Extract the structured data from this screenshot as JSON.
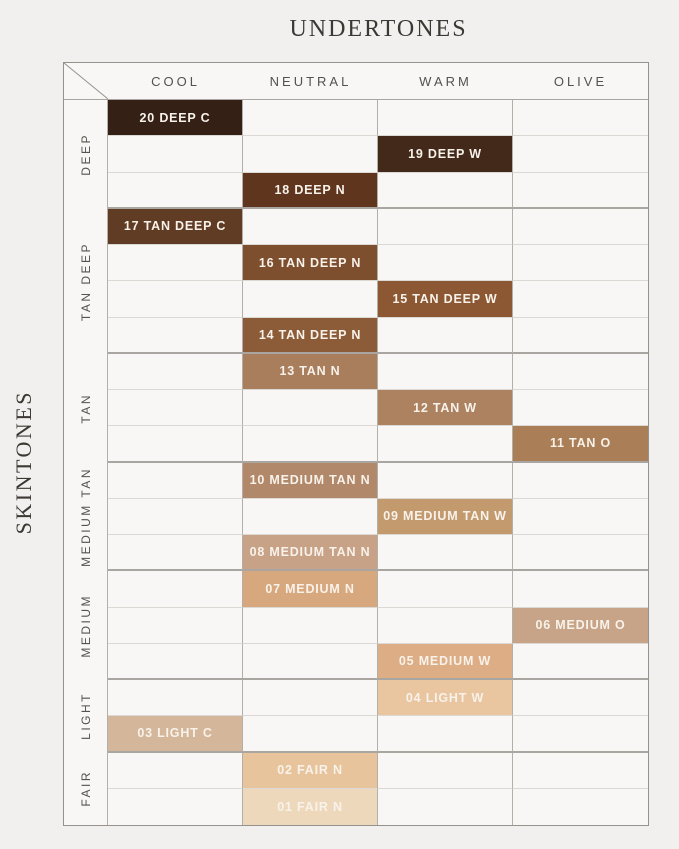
{
  "title": "UNDERTONES",
  "y_axis_title": "SKINTONES",
  "columns": [
    {
      "id": "cool",
      "label": "COOL"
    },
    {
      "id": "neutral",
      "label": "NEUTRAL"
    },
    {
      "id": "warm",
      "label": "WARM"
    },
    {
      "id": "olive",
      "label": "OLIVE"
    }
  ],
  "groups": [
    {
      "label": "DEEP",
      "rows": 3
    },
    {
      "label": "TAN DEEP",
      "rows": 4
    },
    {
      "label": "TAN",
      "rows": 3
    },
    {
      "label": "MEDIUM TAN",
      "rows": 3
    },
    {
      "label": "MEDIUM",
      "rows": 3
    },
    {
      "label": "LIGHT",
      "rows": 2
    },
    {
      "label": "FAIR",
      "rows": 2
    }
  ],
  "shades": [
    {
      "label": "20 DEEP C",
      "group": "DEEP",
      "column": "cool",
      "color": "#342015"
    },
    {
      "label": "19 DEEP W",
      "group": "DEEP",
      "column": "warm",
      "color": "#42291a"
    },
    {
      "label": "18 DEEP N",
      "group": "DEEP",
      "column": "neutral",
      "color": "#5f351e"
    },
    {
      "label": "17 TAN DEEP C",
      "group": "TAN DEEP",
      "column": "cool",
      "color": "#613c25"
    },
    {
      "label": "16 TAN DEEP N",
      "group": "TAN DEEP",
      "column": "neutral",
      "color": "#7d4f2e"
    },
    {
      "label": "15 TAN DEEP W",
      "group": "TAN DEEP",
      "column": "warm",
      "color": "#8b5833"
    },
    {
      "label": "14 TAN DEEP N",
      "group": "TAN DEEP",
      "column": "neutral",
      "color": "#8c5c38"
    },
    {
      "label": "13 TAN N",
      "group": "TAN",
      "column": "neutral",
      "color": "#a87e5d"
    },
    {
      "label": "12 TAN W",
      "group": "TAN",
      "column": "warm",
      "color": "#ac8260"
    },
    {
      "label": "11 TAN O",
      "group": "TAN",
      "column": "olive",
      "color": "#aa7f58"
    },
    {
      "label": "10 MEDIUM TAN N",
      "group": "MEDIUM TAN",
      "column": "neutral",
      "color": "#b1896a"
    },
    {
      "label": "09 MEDIUM TAN W",
      "group": "MEDIUM TAN",
      "column": "warm",
      "color": "#c39a6e"
    },
    {
      "label": "08 MEDIUM TAN N",
      "group": "MEDIUM TAN",
      "column": "neutral",
      "color": "#c7a286"
    },
    {
      "label": "07 MEDIUM N",
      "group": "MEDIUM",
      "column": "neutral",
      "color": "#d7a77e"
    },
    {
      "label": "06 MEDIUM O",
      "group": "MEDIUM",
      "column": "olive",
      "color": "#c7a487"
    },
    {
      "label": "05 MEDIUM W",
      "group": "MEDIUM",
      "column": "warm",
      "color": "#ddad85"
    },
    {
      "label": "04 LIGHT W",
      "group": "LIGHT",
      "column": "warm",
      "color": "#e9c5a0"
    },
    {
      "label": "03 LIGHT C",
      "group": "LIGHT",
      "column": "cool",
      "color": "#d4b69a"
    },
    {
      "label": "02 FAIR N",
      "group": "FAIR",
      "column": "neutral",
      "color": "#e8c49c"
    },
    {
      "label": "01 FAIR N",
      "group": "FAIR",
      "column": "neutral",
      "color": "#eed8bb"
    }
  ],
  "colors": {
    "page_bg": "#f2f0ee",
    "table_bg": "#f8f7f5",
    "border": "#96918c",
    "vline": "#b2aea8",
    "rowline": "#dcd8d3",
    "groupline": "#a9a5a0",
    "header_text": "#55514c",
    "title_text": "#3c3834",
    "swatch_text": "#f8f2ea"
  },
  "chart_data": {
    "type": "heatmap",
    "title": "UNDERTONES",
    "xlabel": "UNDERTONES",
    "ylabel": "SKINTONES",
    "x_categories": [
      "COOL",
      "NEUTRAL",
      "WARM",
      "OLIVE"
    ],
    "y_group_categories": [
      "DEEP",
      "TAN DEEP",
      "TAN",
      "MEDIUM TAN",
      "MEDIUM",
      "LIGHT",
      "FAIR"
    ],
    "grid": "on",
    "rows": [
      {
        "shade": "20 DEEP C",
        "skintone": "DEEP",
        "undertone": "COOL",
        "swatch_color": "#342015"
      },
      {
        "shade": "19 DEEP W",
        "skintone": "DEEP",
        "undertone": "WARM",
        "swatch_color": "#42291a"
      },
      {
        "shade": "18 DEEP N",
        "skintone": "DEEP",
        "undertone": "NEUTRAL",
        "swatch_color": "#5f351e"
      },
      {
        "shade": "17 TAN DEEP C",
        "skintone": "TAN DEEP",
        "undertone": "COOL",
        "swatch_color": "#613c25"
      },
      {
        "shade": "16 TAN DEEP N",
        "skintone": "TAN DEEP",
        "undertone": "NEUTRAL",
        "swatch_color": "#7d4f2e"
      },
      {
        "shade": "15 TAN DEEP W",
        "skintone": "TAN DEEP",
        "undertone": "WARM",
        "swatch_color": "#8b5833"
      },
      {
        "shade": "14 TAN DEEP N",
        "skintone": "TAN DEEP",
        "undertone": "NEUTRAL",
        "swatch_color": "#8c5c38"
      },
      {
        "shade": "13 TAN N",
        "skintone": "TAN",
        "undertone": "NEUTRAL",
        "swatch_color": "#a87e5d"
      },
      {
        "shade": "12 TAN W",
        "skintone": "TAN",
        "undertone": "WARM",
        "swatch_color": "#ac8260"
      },
      {
        "shade": "11 TAN O",
        "skintone": "TAN",
        "undertone": "OLIVE",
        "swatch_color": "#aa7f58"
      },
      {
        "shade": "10 MEDIUM TAN N",
        "skintone": "MEDIUM TAN",
        "undertone": "NEUTRAL",
        "swatch_color": "#b1896a"
      },
      {
        "shade": "09 MEDIUM TAN W",
        "skintone": "MEDIUM TAN",
        "undertone": "WARM",
        "swatch_color": "#c39a6e"
      },
      {
        "shade": "08 MEDIUM TAN N",
        "skintone": "MEDIUM TAN",
        "undertone": "NEUTRAL",
        "swatch_color": "#c7a286"
      },
      {
        "shade": "07 MEDIUM N",
        "skintone": "MEDIUM",
        "undertone": "NEUTRAL",
        "swatch_color": "#d7a77e"
      },
      {
        "shade": "06 MEDIUM O",
        "skintone": "MEDIUM",
        "undertone": "OLIVE",
        "swatch_color": "#c7a487"
      },
      {
        "shade": "05 MEDIUM W",
        "skintone": "MEDIUM",
        "undertone": "WARM",
        "swatch_color": "#ddad85"
      },
      {
        "shade": "04 LIGHT W",
        "skintone": "LIGHT",
        "undertone": "WARM",
        "swatch_color": "#e9c5a0"
      },
      {
        "shade": "03 LIGHT C",
        "skintone": "LIGHT",
        "undertone": "COOL",
        "swatch_color": "#d4b69a"
      },
      {
        "shade": "02 FAIR N",
        "skintone": "FAIR",
        "undertone": "NEUTRAL",
        "swatch_color": "#e8c49c"
      },
      {
        "shade": "01 FAIR N",
        "skintone": "FAIR",
        "undertone": "NEUTRAL",
        "swatch_color": "#eed8bb"
      }
    ]
  }
}
